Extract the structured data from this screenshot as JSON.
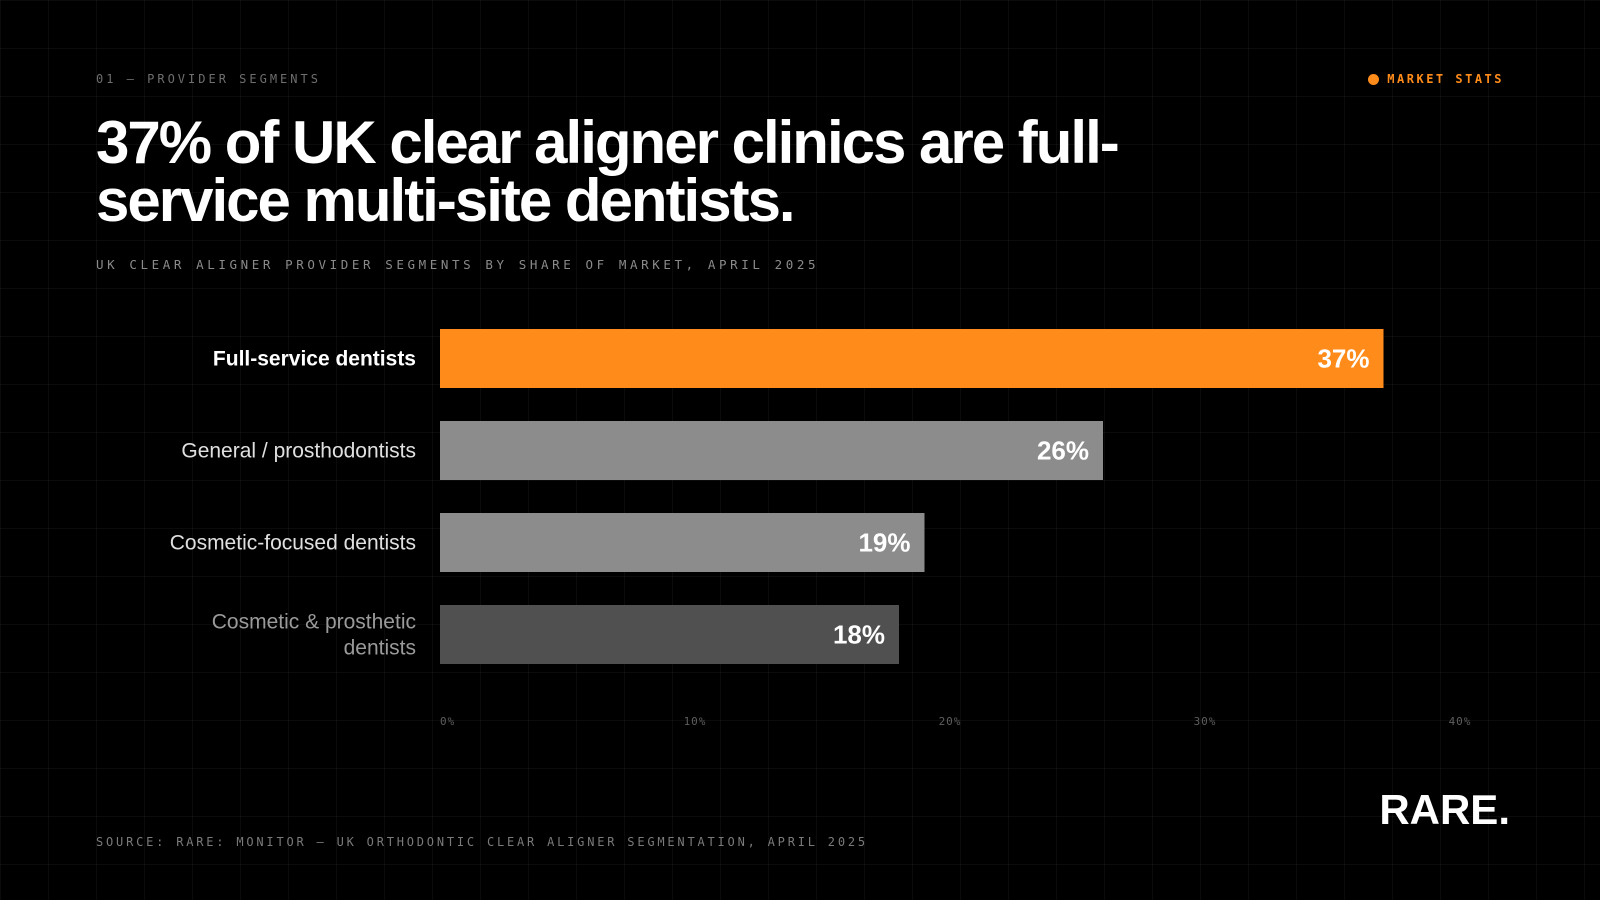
{
  "header": {
    "kicker": "01 — PROVIDER SEGMENTS",
    "tag_label": "MARKET STATS",
    "title": "37% of UK clear aligner clinics are full-service multi-site dentists.",
    "subtitle": "UK CLEAR ALIGNER PROVIDER SEGMENTS BY SHARE OF MARKET, APRIL 2025"
  },
  "footer": {
    "source": "SOURCE: RARE: MONITOR — UK ORTHODONTIC CLEAR ALIGNER SEGMENTATION, APRIL 2025",
    "brand": "RARE."
  },
  "colors": {
    "accent": "#FF8C1A",
    "bars": [
      "#FF8C1A",
      "#8C8C8C",
      "#8C8C8C",
      "#505050"
    ],
    "labels": [
      "#FFFFFF",
      "#E0E0E0",
      "#E0E0E0",
      "#9A9A9A"
    ]
  },
  "chart_data": {
    "type": "bar",
    "orientation": "horizontal",
    "categories": [
      [
        "Full-service dentists"
      ],
      [
        "General / prosthodontists"
      ],
      [
        "Cosmetic-focused dentists"
      ],
      [
        "Cosmetic & prosthetic",
        "dentists"
      ]
    ],
    "values": [
      37,
      26,
      19,
      18
    ],
    "value_labels": [
      "37%",
      "26%",
      "19%",
      "18%"
    ],
    "xlim": [
      0,
      40
    ],
    "xticks": [
      0,
      10,
      20,
      30,
      40
    ],
    "xtick_labels": [
      "0%",
      "10%",
      "20%",
      "30%",
      "40%"
    ],
    "grid": false,
    "legend": "none"
  }
}
